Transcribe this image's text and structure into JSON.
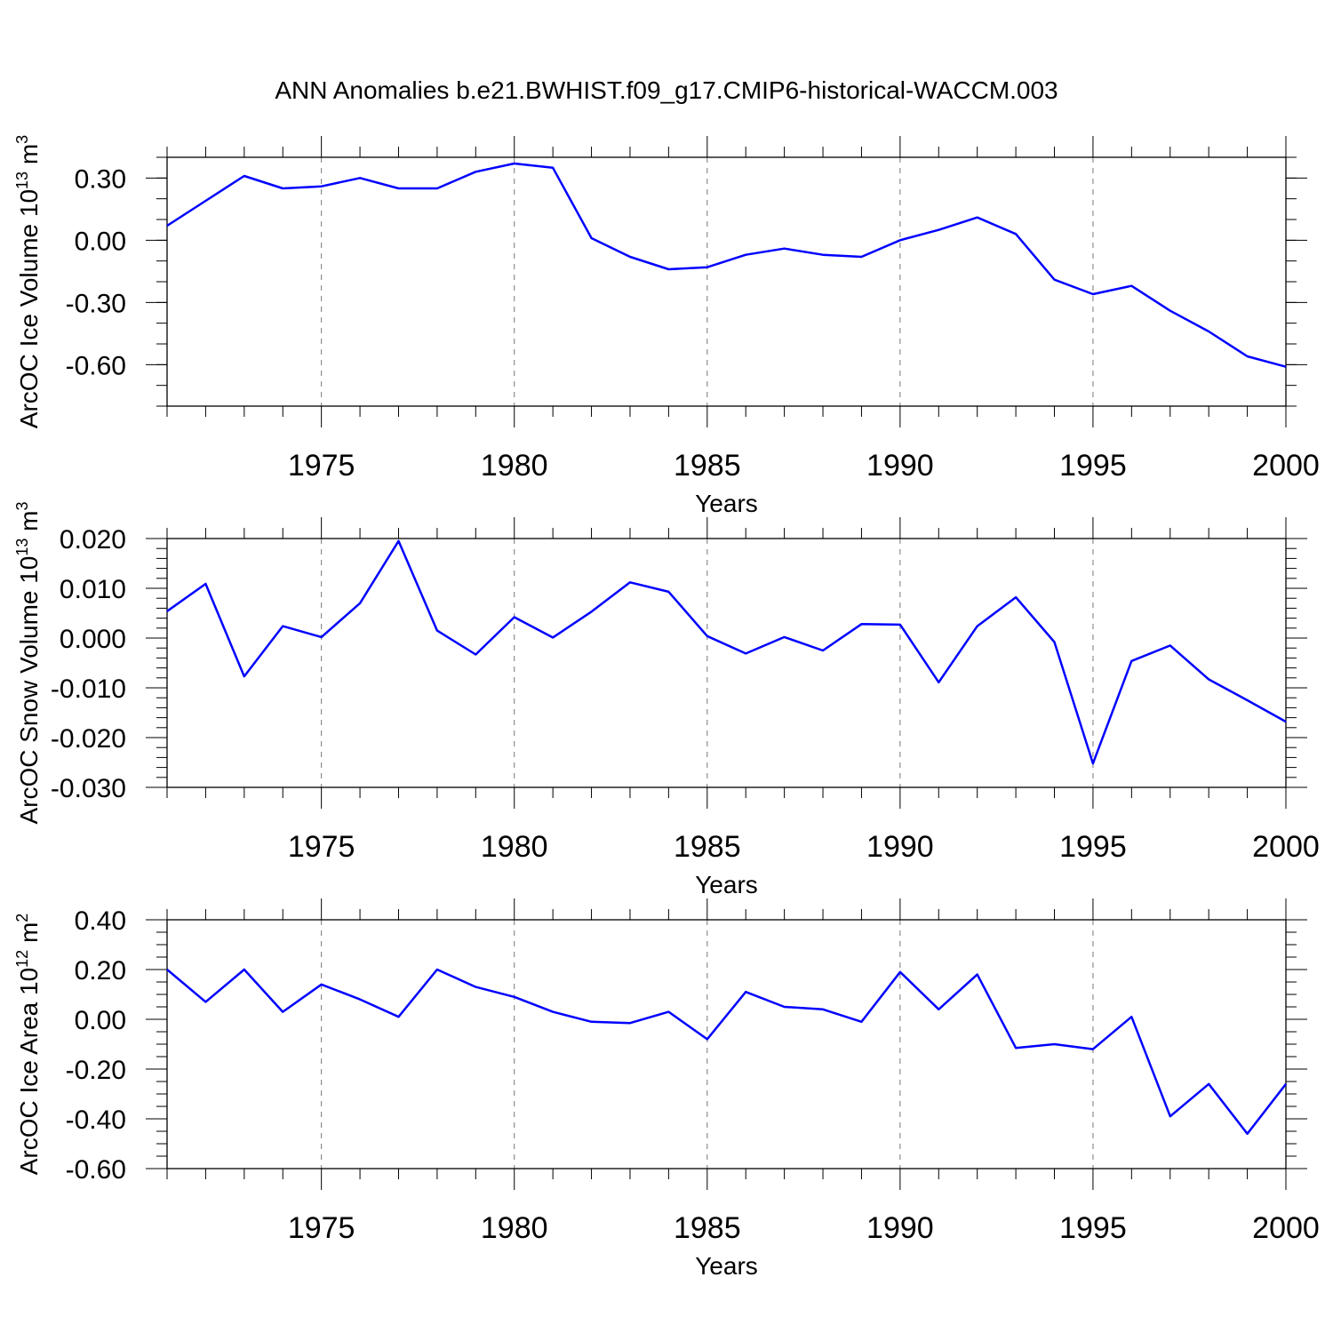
{
  "title": "ANN Anomalies b.e21.BWHIST.f09_g17.CMIP6-historical-WACCM.003",
  "colors": {
    "line": "#0000ff",
    "axis": "#000000",
    "grid": "#777777"
  },
  "chart_data": [
    {
      "type": "line",
      "id": "ice-volume",
      "ylabel": "ArcOC Ice Volume 10",
      "ylabel_exp": "13",
      "ylabel_unit": " m",
      "ylabel_unit_exp": "3",
      "xlabel": "Years",
      "xlim": [
        1971,
        2000
      ],
      "ylim": [
        -0.8,
        0.4
      ],
      "yticks": [
        0.3,
        0.0,
        -0.3,
        -0.6
      ],
      "yticklabels": [
        "0.30",
        "0.00",
        "-0.30",
        "-0.60"
      ],
      "yminor_step": 0.1,
      "xticks": [
        1975,
        1980,
        1985,
        1990,
        1995,
        2000
      ],
      "xticklabels": [
        "1975",
        "1980",
        "1985",
        "1990",
        "1995",
        "2000"
      ],
      "x": [
        1971,
        1972,
        1973,
        1974,
        1975,
        1976,
        1977,
        1978,
        1979,
        1980,
        1981,
        1982,
        1983,
        1984,
        1985,
        1986,
        1987,
        1988,
        1989,
        1990,
        1991,
        1992,
        1993,
        1994,
        1995,
        1996,
        1997,
        1998,
        1999,
        2000
      ],
      "values": [
        0.07,
        0.19,
        0.31,
        0.25,
        0.26,
        0.3,
        0.25,
        0.25,
        0.33,
        0.37,
        0.35,
        0.01,
        -0.08,
        -0.14,
        -0.13,
        -0.07,
        -0.04,
        -0.07,
        -0.08,
        0.0,
        0.05,
        0.11,
        0.03,
        -0.19,
        -0.26,
        -0.22,
        -0.34,
        -0.44,
        -0.56,
        -0.61
      ]
    },
    {
      "type": "line",
      "id": "snow-volume",
      "ylabel": "ArcOC Snow Volume 10",
      "ylabel_exp": "13",
      "ylabel_unit": " m",
      "ylabel_unit_exp": "3",
      "xlabel": "Years",
      "xlim": [
        1971,
        2000
      ],
      "ylim": [
        -0.03,
        0.02
      ],
      "yticks": [
        0.02,
        0.01,
        0.0,
        -0.01,
        -0.02,
        -0.03
      ],
      "yticklabels": [
        "0.020",
        "0.010",
        "0.000",
        "-0.010",
        "-0.020",
        "-0.030"
      ],
      "yminor_step": 0.002,
      "xticks": [
        1975,
        1980,
        1985,
        1990,
        1995,
        2000
      ],
      "xticklabels": [
        "1975",
        "1980",
        "1985",
        "1990",
        "1995",
        "2000"
      ],
      "x": [
        1971,
        1972,
        1973,
        1974,
        1975,
        1976,
        1977,
        1978,
        1979,
        1980,
        1981,
        1982,
        1983,
        1984,
        1985,
        1986,
        1987,
        1988,
        1989,
        1990,
        1991,
        1992,
        1993,
        1994,
        1995,
        1996,
        1997,
        1998,
        1999,
        2000
      ],
      "values": [
        0.0054,
        0.0109,
        -0.0077,
        0.0024,
        0.0002,
        0.007,
        0.0195,
        0.0015,
        -0.0033,
        0.0042,
        0.0001,
        0.0053,
        0.0112,
        0.0093,
        0.0004,
        -0.0031,
        0.0002,
        -0.0025,
        0.0028,
        0.0027,
        -0.0089,
        0.0024,
        0.0082,
        -0.0008,
        -0.0252,
        -0.0046,
        -0.0015,
        -0.0083,
        -0.0125,
        -0.0168
      ]
    },
    {
      "type": "line",
      "id": "ice-area",
      "ylabel": "ArcOC Ice Area 10",
      "ylabel_exp": "12",
      "ylabel_unit": " m",
      "ylabel_unit_exp": "2",
      "xlabel": "Years",
      "xlim": [
        1971,
        2000
      ],
      "ylim": [
        -0.6,
        0.4
      ],
      "yticks": [
        0.4,
        0.2,
        0.0,
        -0.2,
        -0.4,
        -0.6
      ],
      "yticklabels": [
        "0.40",
        "0.20",
        "0.00",
        "-0.20",
        "-0.40",
        "-0.60"
      ],
      "yminor_step": 0.05,
      "xticks": [
        1975,
        1980,
        1985,
        1990,
        1995,
        2000
      ],
      "xticklabels": [
        "1975",
        "1980",
        "1985",
        "1990",
        "1995",
        "2000"
      ],
      "x": [
        1971,
        1972,
        1973,
        1974,
        1975,
        1976,
        1977,
        1978,
        1979,
        1980,
        1981,
        1982,
        1983,
        1984,
        1985,
        1986,
        1987,
        1988,
        1989,
        1990,
        1991,
        1992,
        1993,
        1994,
        1995,
        1996,
        1997,
        1998,
        1999,
        2000
      ],
      "values": [
        0.2,
        0.07,
        0.2,
        0.03,
        0.14,
        0.08,
        0.01,
        0.2,
        0.13,
        0.09,
        0.03,
        -0.01,
        -0.015,
        0.03,
        -0.08,
        0.11,
        0.05,
        0.04,
        -0.01,
        0.19,
        0.04,
        0.18,
        -0.115,
        -0.1,
        -0.12,
        0.01,
        -0.39,
        -0.26,
        -0.46,
        -0.26
      ]
    }
  ]
}
